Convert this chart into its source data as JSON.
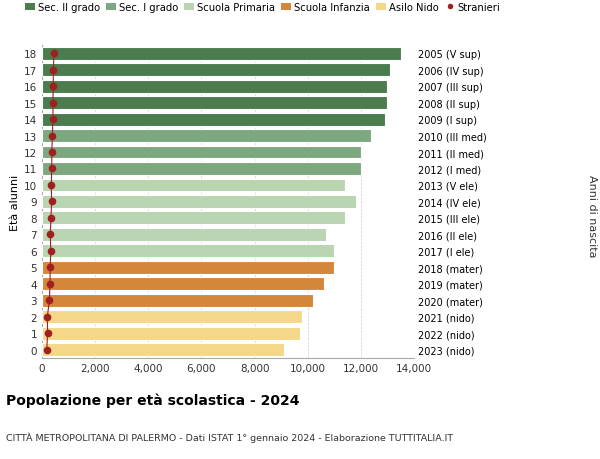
{
  "ages": [
    18,
    17,
    16,
    15,
    14,
    13,
    12,
    11,
    10,
    9,
    8,
    7,
    6,
    5,
    4,
    3,
    2,
    1,
    0
  ],
  "right_labels": [
    "2005 (V sup)",
    "2006 (IV sup)",
    "2007 (III sup)",
    "2008 (II sup)",
    "2009 (I sup)",
    "2010 (III med)",
    "2011 (II med)",
    "2012 (I med)",
    "2013 (V ele)",
    "2014 (IV ele)",
    "2015 (III ele)",
    "2016 (II ele)",
    "2017 (I ele)",
    "2018 (mater)",
    "2019 (mater)",
    "2020 (mater)",
    "2021 (nido)",
    "2022 (nido)",
    "2023 (nido)"
  ],
  "bar_values": [
    13500,
    13100,
    13000,
    13000,
    12900,
    12400,
    12000,
    12000,
    11400,
    11800,
    11400,
    10700,
    11000,
    11000,
    10600,
    10200,
    9800,
    9700,
    9100
  ],
  "stranieri_values": [
    450,
    430,
    420,
    415,
    410,
    390,
    370,
    365,
    350,
    360,
    340,
    310,
    330,
    310,
    300,
    280,
    200,
    210,
    180
  ],
  "bar_colors": [
    "#4a7c4e",
    "#4a7c4e",
    "#4a7c4e",
    "#4a7c4e",
    "#4a7c4e",
    "#7da87f",
    "#7da87f",
    "#7da87f",
    "#b8d4b0",
    "#b8d4b0",
    "#b8d4b0",
    "#b8d4b0",
    "#b8d4b0",
    "#d4873a",
    "#d4873a",
    "#d4873a",
    "#f5d78a",
    "#f5d78a",
    "#f5d78a"
  ],
  "legend_labels": [
    "Sec. II grado",
    "Sec. I grado",
    "Scuola Primaria",
    "Scuola Infanzia",
    "Asilo Nido",
    "Stranieri"
  ],
  "legend_colors": [
    "#4a7c4e",
    "#7da87f",
    "#b8d4b0",
    "#d4873a",
    "#f5d78a",
    "#a02020"
  ],
  "ylabel_left": "Età alunni",
  "ylabel_right": "Anni di nascita",
  "title": "Popolazione per età scolastica - 2024",
  "subtitle": "CITTÀ METROPOLITANA DI PALERMO - Dati ISTAT 1° gennaio 2024 - Elaborazione TUTTITALIA.IT",
  "xlim": [
    0,
    14000
  ],
  "xticks": [
    0,
    2000,
    4000,
    6000,
    8000,
    10000,
    12000,
    14000
  ],
  "xtick_labels": [
    "0",
    "2,000",
    "4,000",
    "6,000",
    "8,000",
    "10,000",
    "12,000",
    "14,000"
  ],
  "bg_color": "#ffffff",
  "bar_height": 0.78,
  "stranieri_color": "#a02020",
  "stranieri_size": 4.5
}
